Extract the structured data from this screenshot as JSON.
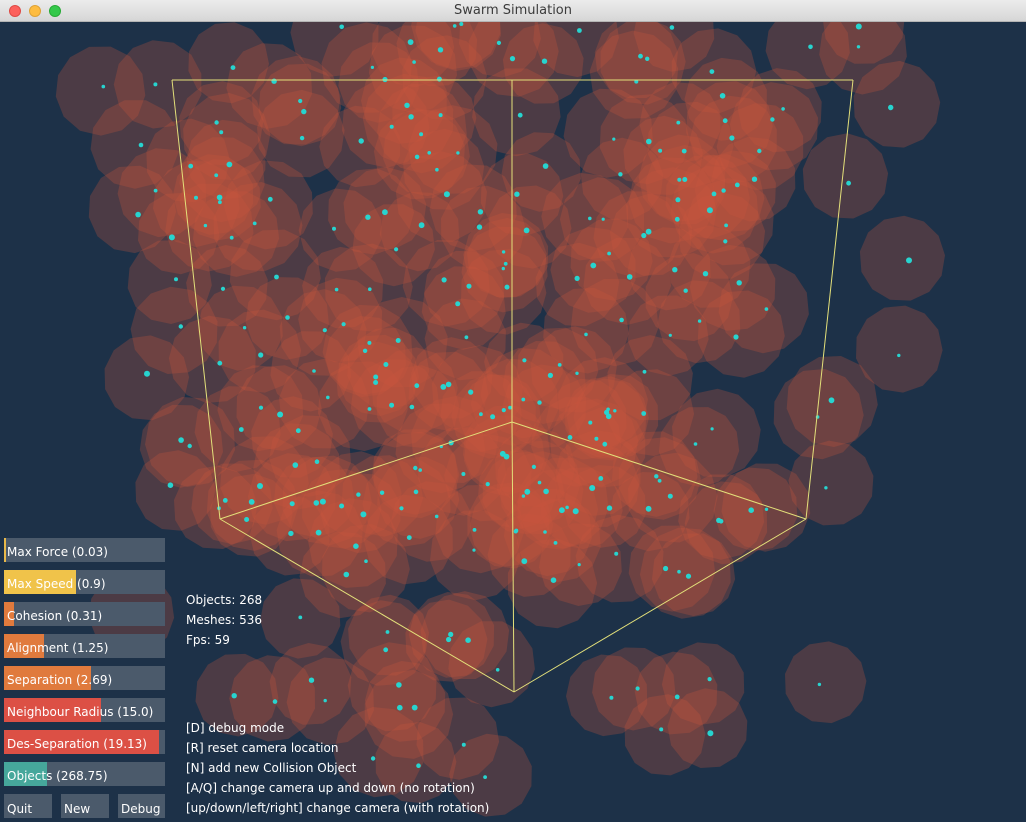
{
  "window": {
    "title": "Swarm Simulation"
  },
  "stats": {
    "objects": "Objects: 268",
    "meshes": "Meshes: 536",
    "fps": "Fps: 59"
  },
  "help_lines": [
    "[D] debug mode",
    "[R] reset camera location",
    "[N] add new Collision Object",
    "[A/Q] change camera up and down (no rotation)",
    "[up/down/left/right] change camera (with rotation)"
  ],
  "sliders": [
    {
      "label": "Max Force (0.03)",
      "fraction": 0.012,
      "color": "#e8b84a"
    },
    {
      "label": "Max Speed (0.9)",
      "fraction": 0.45,
      "color": "#f0c34a"
    },
    {
      "label": "Cohesion (0.31)",
      "fraction": 0.06,
      "color": "#e07a3d"
    },
    {
      "label": "Alignment (1.25)",
      "fraction": 0.25,
      "color": "#e07a3d"
    },
    {
      "label": "Separation (2.69)",
      "fraction": 0.54,
      "color": "#e07a3d"
    },
    {
      "label": "Neighbour Radius (15.0)",
      "fraction": 0.6,
      "color": "#dc5045"
    },
    {
      "label": "Des-Separation (19.13)",
      "fraction": 0.96,
      "color": "#dc5045"
    },
    {
      "label": "Objects (268.75)",
      "fraction": 0.27,
      "color": "#46a79b"
    }
  ],
  "buttons": {
    "quit": "Quit",
    "new": "New",
    "debug": "Debug"
  },
  "colors": {
    "background": "#1d3148",
    "agent_halo": "#c8553d",
    "agent_dot": "#27d4cf",
    "bounds_box": "#e3e07a"
  }
}
